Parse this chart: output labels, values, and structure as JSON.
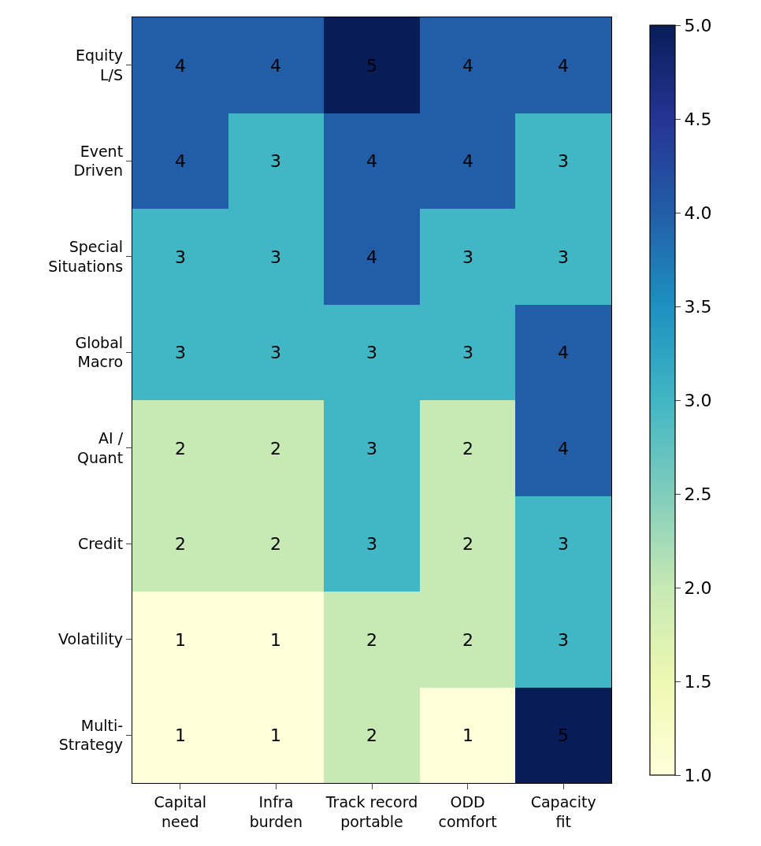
{
  "chart_data": {
    "type": "heatmap",
    "categories": [
      "Capital\nneed",
      "Infra\nburden",
      "Track record\nportable",
      "ODD\ncomfort",
      "Capacity\nfit"
    ],
    "y_categories": [
      "Equity\nL/S",
      "Event\nDriven",
      "Special\nSituations",
      "Global\nMacro",
      "AI /\nQuant",
      "Credit",
      "Volatility",
      "Multi-\nStrategy"
    ],
    "cells": [
      [
        4,
        4,
        5,
        4,
        4
      ],
      [
        4,
        3,
        4,
        4,
        3
      ],
      [
        3,
        3,
        4,
        3,
        3
      ],
      [
        3,
        3,
        3,
        3,
        4
      ],
      [
        2,
        2,
        3,
        2,
        4
      ],
      [
        2,
        2,
        3,
        2,
        3
      ],
      [
        1,
        1,
        2,
        2,
        3
      ],
      [
        1,
        1,
        2,
        1,
        5
      ]
    ],
    "data_labels": true,
    "clim": [
      1.0,
      5.0
    ],
    "cticks": [
      {
        "value": 1.0,
        "label": "1.0"
      },
      {
        "value": 1.5,
        "label": "1.5"
      },
      {
        "value": 2.0,
        "label": "2.0"
      },
      {
        "value": 2.5,
        "label": "2.5"
      },
      {
        "value": 3.0,
        "label": "3.0"
      },
      {
        "value": 3.5,
        "label": "3.5"
      },
      {
        "value": 4.0,
        "label": "4.0"
      },
      {
        "value": 4.5,
        "label": "4.5"
      },
      {
        "value": 5.0,
        "label": "5.0"
      }
    ]
  }
}
